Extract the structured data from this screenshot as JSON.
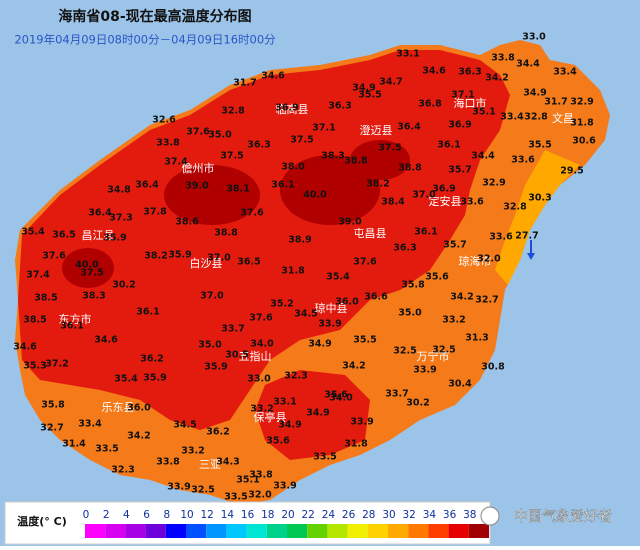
{
  "header": {
    "title": "海南省08-现在最高温度分布图",
    "subtitle": "2019年04月09日08时00分－04月09日16时00分"
  },
  "stations": [
    "33.1",
    "33.0",
    "34.6",
    "31.7",
    "34.9",
    "34.7",
    "34.6",
    "36.3",
    "34.2",
    "33.8",
    "34.4",
    "33.4",
    "35.5",
    "37.1",
    "34.9",
    "32.8",
    "36.9",
    "36.3",
    "36.8",
    "31.7",
    "32.9",
    "32.6",
    "35.1",
    "33.4",
    "32.8",
    "31.8",
    "37.6",
    "35.0",
    "37.1",
    "36.4",
    "36.9",
    "33.8",
    "36.3",
    "37.5",
    "37.5",
    "36.1",
    "35.5",
    "30.6",
    "37.4",
    "37.5",
    "38.3",
    "38.8",
    "34.4",
    "33.6",
    "38.0",
    "38.8",
    "35.7",
    "29.5",
    "34.8",
    "36.4",
    "39.0",
    "38.1",
    "36.1",
    "40.0",
    "38.2",
    "36.9",
    "32.9",
    "38.4",
    "37.0",
    "33.6",
    "30.3",
    "36.4",
    "37.3",
    "37.8",
    "37.6",
    "39.0",
    "32.8",
    "35.4",
    "36.5",
    "38.6",
    "38.8",
    "38.9",
    "36.1",
    "33.6",
    "27.7",
    "35.9",
    "35.7",
    "37.6",
    "38.2",
    "35.9",
    "37.0",
    "36.5",
    "37.6",
    "36.3",
    "32.0",
    "37.4",
    "40.0",
    "37.5",
    "31.8",
    "35.4",
    "35.6",
    "30.2",
    "38.5",
    "38.3",
    "37.0",
    "35.8",
    "34.2",
    "32.7",
    "38.5",
    "36.1",
    "35.2",
    "34.5",
    "36.0",
    "36.6",
    "35.0",
    "33.2",
    "36.1",
    "33.7",
    "37.6",
    "33.9",
    "34.6",
    "34.6",
    "35.0",
    "34.0",
    "34.9",
    "35.5",
    "31.3",
    "35.3",
    "37.2",
    "36.2",
    "30.5",
    "32.5",
    "32.5",
    "35.9",
    "34.2",
    "33.9",
    "30.8",
    "35.4",
    "35.9",
    "33.0",
    "32.3",
    "30.4",
    "33.7",
    "35.6",
    "35.8",
    "36.0",
    "33.2",
    "33.1",
    "34.0",
    "34.9",
    "30.2",
    "32.7",
    "33.4",
    "34.5",
    "36.2",
    "34.9",
    "33.9",
    "34.2",
    "35.6",
    "31.4",
    "33.5",
    "33.2",
    "31.8",
    "33.8",
    "34.3",
    "33.5",
    "32.3",
    "33.8",
    "33.9",
    "32.5",
    "35.1",
    "33.9",
    "33.5",
    "32.0"
  ],
  "cities": [
    "海口市",
    "临高县",
    "澄迈县",
    "文昌",
    "儋州市",
    "定安县",
    "昌江县",
    "屯昌县",
    "琼海市",
    "白沙县",
    "东方市",
    "琼中县",
    "万宁市",
    "五指山",
    "乐东县",
    "保亭县",
    "三亚"
  ],
  "legend": {
    "label": "温度(° C)",
    "ticks": [
      0,
      2,
      4,
      6,
      8,
      10,
      12,
      14,
      16,
      18,
      20,
      22,
      24,
      26,
      28,
      30,
      32,
      34,
      36,
      38
    ],
    "colors": [
      "#ff00ff",
      "#d800f0",
      "#a800e6",
      "#6e00dc",
      "#0000ff",
      "#0050ff",
      "#0096ff",
      "#00c8ff",
      "#00e6d2",
      "#00d28c",
      "#00c850",
      "#64d200",
      "#b4e600",
      "#f0f000",
      "#ffd200",
      "#ffaa00",
      "#ff7800",
      "#ff3c00",
      "#e60000",
      "#a00000"
    ]
  },
  "watermark": "中国气象爱好者"
}
